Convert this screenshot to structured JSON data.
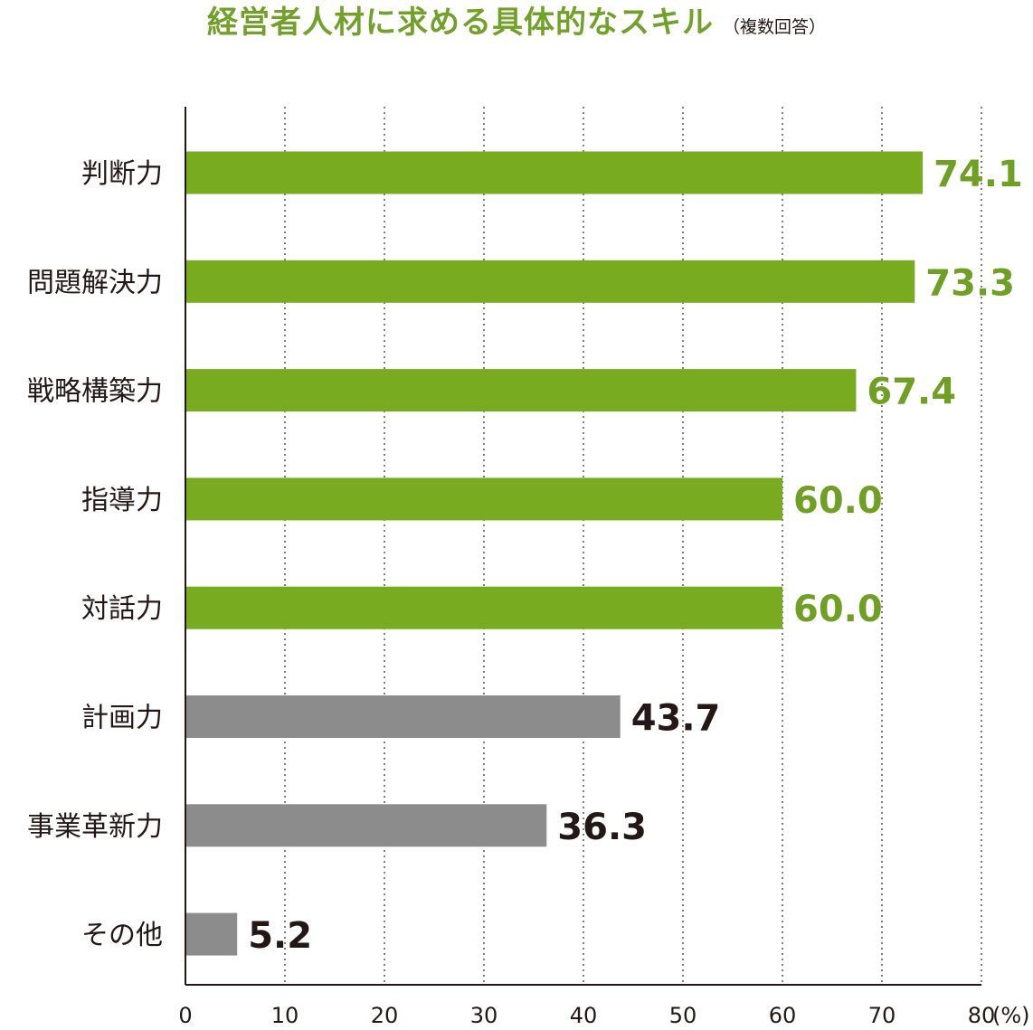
{
  "chart_data": {
    "type": "bar",
    "orientation": "horizontal",
    "title": "経営者人材に求める具体的なスキル",
    "subtitle": "（複数回答）",
    "categories": [
      "判断力",
      "問題解決力",
      "戦略構築力",
      "指導力",
      "対話力",
      "計画力",
      "事業革新力",
      "その他"
    ],
    "values": [
      74.1,
      73.3,
      67.4,
      60.0,
      60.0,
      43.7,
      36.3,
      5.2
    ],
    "value_labels": [
      "74.1",
      "73.3",
      "67.4",
      "60.0",
      "60.0",
      "43.7",
      "36.3",
      "5.2"
    ],
    "highlighted": [
      true,
      true,
      true,
      true,
      true,
      false,
      false,
      false
    ],
    "xlim": [
      0,
      80
    ],
    "xticks": [
      "0",
      "10",
      "20",
      "30",
      "40",
      "50",
      "60",
      "70",
      "80"
    ],
    "x_unit": "(%)",
    "grid": "vertical dotted",
    "legend": "none",
    "colors": {
      "highlight_bar": "#78ab1f",
      "highlight_label": "#6f9f23",
      "normal_bar": "#8c8c8c",
      "normal_label": "#231815",
      "title": "#72a12a",
      "axis": "#231815",
      "grid": "#555555"
    }
  }
}
